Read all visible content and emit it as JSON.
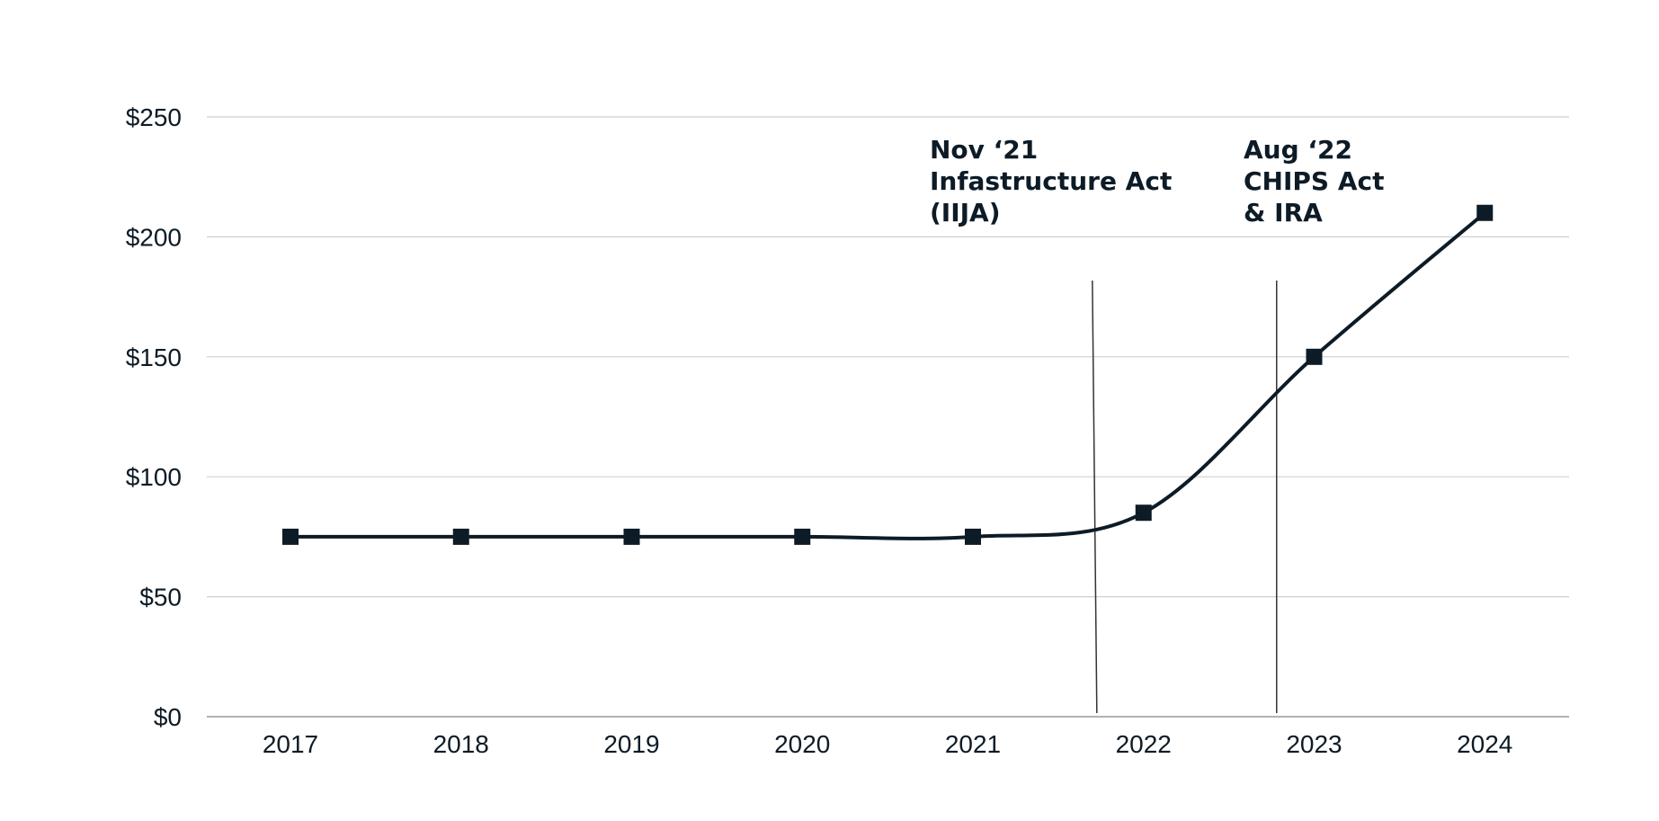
{
  "chart_data": {
    "type": "line",
    "title": "",
    "xlabel": "",
    "ylabel": "",
    "categories": [
      "2017",
      "2018",
      "2019",
      "2020",
      "2021",
      "2022",
      "2023",
      "2024"
    ],
    "series": [
      {
        "values": [
          75,
          75,
          75,
          75,
          75,
          85,
          150,
          210
        ]
      }
    ],
    "ylim": [
      0,
      250
    ],
    "yticks": [
      0,
      50,
      100,
      150,
      200,
      250
    ],
    "ytick_labels": [
      "$0",
      "$50",
      "$100",
      "$150",
      "$200",
      "$250"
    ],
    "grid": "horizontal",
    "marker": "square",
    "line_color": "#0d1b26",
    "annotations": [
      {
        "position": 2021.7,
        "lines": [
          "Nov ‘21",
          "Infastructure Act",
          "(IIJA)"
        ]
      },
      {
        "position": 2022.78,
        "lines": [
          "Aug ‘22",
          "CHIPS Act",
          "& IRA"
        ]
      }
    ]
  }
}
